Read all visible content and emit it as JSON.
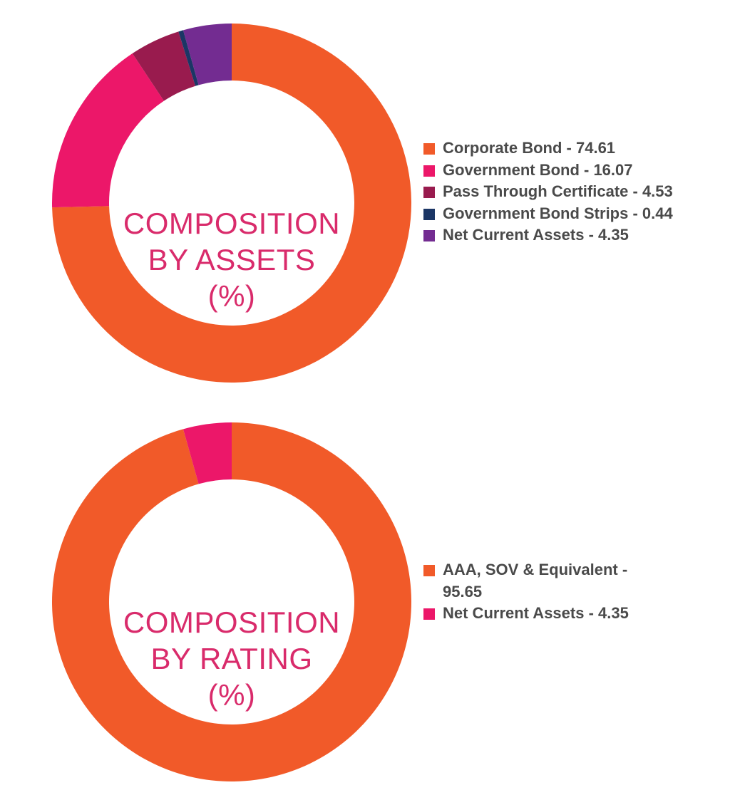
{
  "charts": [
    {
      "id": "assets",
      "title_lines": [
        "COMPOSITION",
        "BY ASSETS",
        "(%)"
      ],
      "legend_items": [
        {
          "label": "Corporate Bond - 74.61",
          "color": "#f15a29"
        },
        {
          "label": "Government Bond - 16.07",
          "color": "#ec1769"
        },
        {
          "label": "Pass Through Certificate - 4.53",
          "color": "#991b4e"
        },
        {
          "label": "Government Bond Strips - 0.44",
          "color": "#1b3665"
        },
        {
          "label": "Net Current Assets - 4.35",
          "color": "#732c91"
        }
      ]
    },
    {
      "id": "rating",
      "title_lines": [
        "COMPOSITION",
        "BY RATING",
        "(%)"
      ],
      "legend_items": [
        {
          "label": "AAA, SOV & Equivalent - 95.65",
          "color": "#f15a29"
        },
        {
          "label": "Net Current Assets - 4.35",
          "color": "#ec1769"
        }
      ]
    }
  ],
  "chart_data": [
    {
      "type": "pie",
      "title": "COMPOSITION BY ASSETS (%)",
      "categories": [
        "Corporate Bond",
        "Government Bond",
        "Pass Through Certificate",
        "Government Bond Strips",
        "Net Current Assets"
      ],
      "values": [
        74.61,
        16.07,
        4.53,
        0.44,
        4.35
      ],
      "colors": [
        "#f15a29",
        "#ec1769",
        "#991b4e",
        "#1b3665",
        "#732c91"
      ],
      "legend": "right"
    },
    {
      "type": "pie",
      "title": "COMPOSITION BY RATING (%)",
      "categories": [
        "AAA, SOV & Equivalent",
        "Net Current Assets"
      ],
      "values": [
        95.65,
        4.35
      ],
      "colors": [
        "#f15a29",
        "#ec1769"
      ],
      "legend": "right"
    }
  ]
}
